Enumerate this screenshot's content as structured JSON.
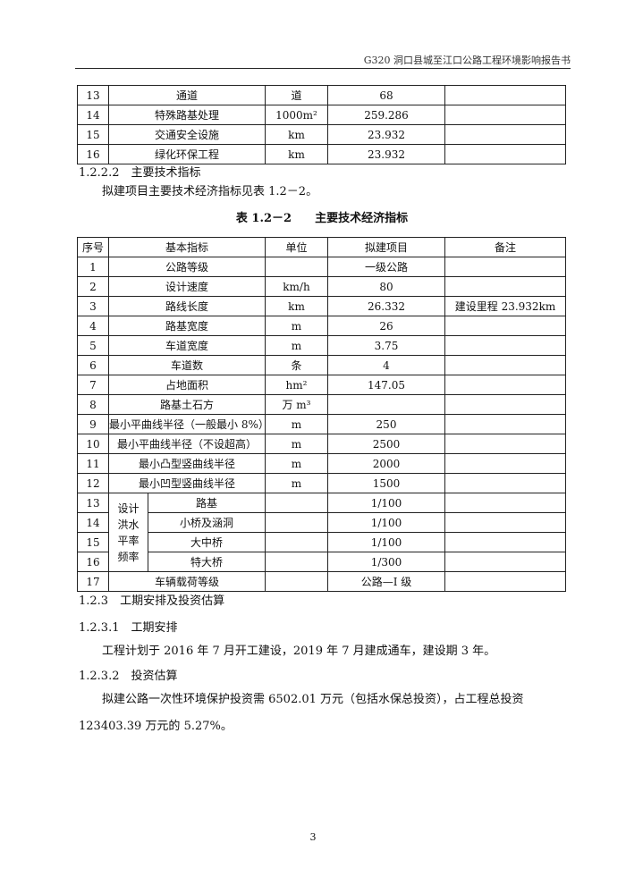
{
  "header": {
    "title": "G320 洞口县城至江口公路工程环境影响报告书"
  },
  "table1": {
    "rows": [
      [
        "13",
        "通道",
        "道",
        "68",
        ""
      ],
      [
        "14",
        "特殊路基处理",
        "1000m²",
        "259.286",
        ""
      ],
      [
        "15",
        "交通安全设施",
        "km",
        "23.932",
        ""
      ],
      [
        "16",
        "绿化环保工程",
        "km",
        "23.932",
        ""
      ]
    ]
  },
  "sec_1222": "1.2.2.2　主要技术指标",
  "para1": "拟建项目主要技术经济指标见表 1.2－2。",
  "caption": "表 1.2－2　　主要技术经济指标",
  "table2": {
    "headers": [
      "序号",
      "基本指标",
      "单位",
      "拟建项目",
      "备注"
    ],
    "rows": [
      [
        "1",
        "公路等级",
        "",
        "一级公路",
        ""
      ],
      [
        "2",
        "设计速度",
        "km/h",
        "80",
        ""
      ],
      [
        "3",
        "路线长度",
        "km",
        "26.332",
        "建设里程 23.932km"
      ],
      [
        "4",
        "路基宽度",
        "m",
        "26",
        ""
      ],
      [
        "5",
        "车道宽度",
        "m",
        "3.75",
        ""
      ],
      [
        "6",
        "车道数",
        "条",
        "4",
        ""
      ],
      [
        "7",
        "占地面积",
        "hm²",
        "147.05",
        ""
      ],
      [
        "8",
        "路基土石方",
        "万 m³",
        "",
        ""
      ],
      [
        "9",
        "最小平曲线半径（一般最小 8%）",
        "m",
        "250",
        ""
      ],
      [
        "10",
        "最小平曲线半径（不设超高）",
        "m",
        "2500",
        ""
      ],
      [
        "11",
        "最小凸型竖曲线半径",
        "m",
        "2000",
        ""
      ],
      [
        "12",
        "最小凹型竖曲线半径",
        "m",
        "1500",
        ""
      ]
    ],
    "flood_group": "设计洪水平率频率",
    "flood_rows": [
      [
        "13",
        "路基",
        "",
        "1/100",
        ""
      ],
      [
        "14",
        "小桥及涵洞",
        "",
        "1/100",
        ""
      ],
      [
        "15",
        "大中桥",
        "",
        "1/100",
        ""
      ],
      [
        "16",
        "特大桥",
        "",
        "1/300",
        ""
      ]
    ],
    "last_row": [
      "17",
      "车辆载荷等级",
      "",
      "公路—I 级",
      ""
    ]
  },
  "sec_123": "1.2.3　工期安排及投资估算",
  "sec_1231": "1.2.3.1　工期安排",
  "para2": "工程计划于 2016 年 7 月开工建设，2019 年 7 月建成通车，建设期 3 年。",
  "sec_1232": "1.2.3.2　投资估算",
  "para3": "拟建公路一次性环境保护投资需 6502.01 万元（包括水保总投资），占工程总投资 123403.39 万元的 5.27%。",
  "page_number": "3"
}
